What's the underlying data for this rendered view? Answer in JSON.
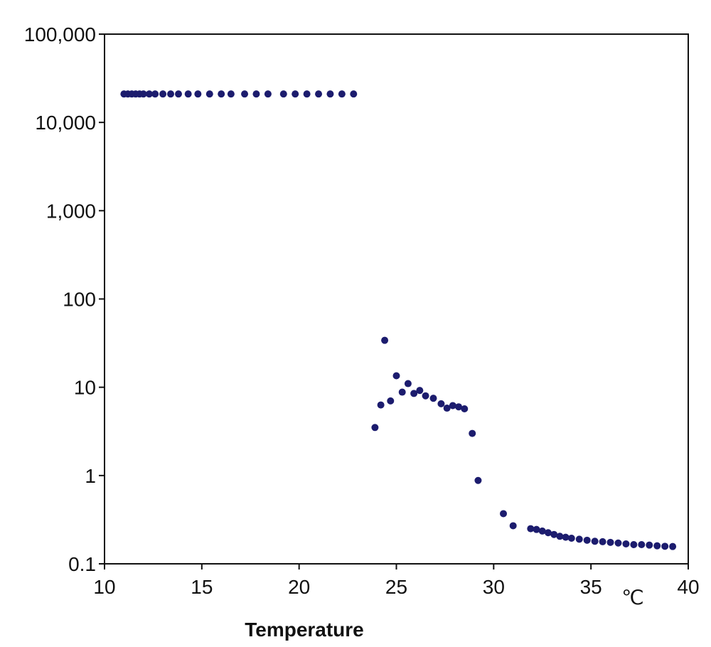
{
  "chart_data": {
    "type": "scatter",
    "title": "",
    "xlabel": "Temperature",
    "x_unit_label": "℃",
    "ylabel": "",
    "xlim": [
      10,
      40
    ],
    "ylim": [
      0.1,
      100000
    ],
    "y_scale": "log",
    "grid": false,
    "legend": "none",
    "x_ticks": [
      10,
      15,
      20,
      25,
      30,
      35,
      40
    ],
    "x_tick_labels": [
      "10",
      "15",
      "20",
      "25",
      "30",
      "35",
      "40"
    ],
    "y_ticks": [
      0.1,
      1,
      10,
      100,
      1000,
      10000,
      100000
    ],
    "y_tick_labels": [
      "0.1",
      "1",
      "10",
      "100",
      "1,000",
      "10,000",
      "100,000"
    ],
    "marker_color": "#1c1c6e",
    "axis_color": "#111111",
    "series": [
      {
        "points": [
          [
            11.0,
            21000
          ],
          [
            11.2,
            21000
          ],
          [
            11.4,
            21000
          ],
          [
            11.6,
            21000
          ],
          [
            11.8,
            21000
          ],
          [
            12.0,
            21000
          ],
          [
            12.3,
            21000
          ],
          [
            12.6,
            21000
          ],
          [
            13.0,
            21000
          ],
          [
            13.4,
            21000
          ],
          [
            13.8,
            21000
          ],
          [
            14.3,
            21000
          ],
          [
            14.8,
            21000
          ],
          [
            15.4,
            21000
          ],
          [
            16.0,
            21000
          ],
          [
            16.5,
            21000
          ],
          [
            17.2,
            21000
          ],
          [
            17.8,
            21000
          ],
          [
            18.4,
            21000
          ],
          [
            19.2,
            21000
          ],
          [
            19.8,
            21000
          ],
          [
            20.4,
            21000
          ],
          [
            21.0,
            21000
          ],
          [
            21.6,
            21000
          ],
          [
            22.2,
            21000
          ],
          [
            22.8,
            21000
          ],
          [
            23.9,
            3.5
          ],
          [
            24.2,
            6.3
          ],
          [
            24.4,
            34
          ],
          [
            24.7,
            7.0
          ],
          [
            25.0,
            13.5
          ],
          [
            25.3,
            8.8
          ],
          [
            25.6,
            11.0
          ],
          [
            25.9,
            8.5
          ],
          [
            26.2,
            9.2
          ],
          [
            26.5,
            8.0
          ],
          [
            26.9,
            7.5
          ],
          [
            27.3,
            6.5
          ],
          [
            27.6,
            5.8
          ],
          [
            27.9,
            6.2
          ],
          [
            28.2,
            6.0
          ],
          [
            28.5,
            5.7
          ],
          [
            28.9,
            3.0
          ],
          [
            29.2,
            0.88
          ],
          [
            30.5,
            0.37
          ],
          [
            31.0,
            0.27
          ],
          [
            31.9,
            0.25
          ],
          [
            32.2,
            0.245
          ],
          [
            32.5,
            0.235
          ],
          [
            32.8,
            0.225
          ],
          [
            33.1,
            0.215
          ],
          [
            33.4,
            0.205
          ],
          [
            33.7,
            0.2
          ],
          [
            34.0,
            0.195
          ],
          [
            34.4,
            0.19
          ],
          [
            34.8,
            0.185
          ],
          [
            35.2,
            0.18
          ],
          [
            35.6,
            0.178
          ],
          [
            36.0,
            0.175
          ],
          [
            36.4,
            0.172
          ],
          [
            36.8,
            0.168
          ],
          [
            37.2,
            0.165
          ],
          [
            37.6,
            0.165
          ],
          [
            38.0,
            0.163
          ],
          [
            38.4,
            0.16
          ],
          [
            38.8,
            0.158
          ],
          [
            39.2,
            0.157
          ]
        ]
      }
    ]
  }
}
